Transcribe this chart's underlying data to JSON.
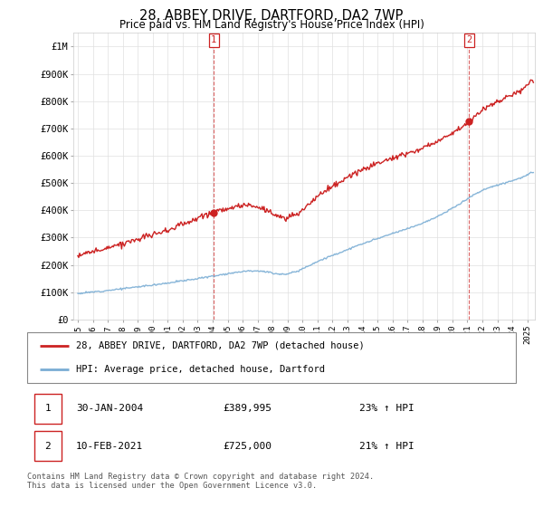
{
  "title": "28, ABBEY DRIVE, DARTFORD, DA2 7WP",
  "subtitle": "Price paid vs. HM Land Registry's House Price Index (HPI)",
  "ylim": [
    0,
    1050000
  ],
  "yticks": [
    0,
    100000,
    200000,
    300000,
    400000,
    500000,
    600000,
    700000,
    800000,
    900000,
    1000000
  ],
  "ytick_labels": [
    "£0",
    "£100K",
    "£200K",
    "£300K",
    "£400K",
    "£500K",
    "£600K",
    "£700K",
    "£800K",
    "£900K",
    "£1M"
  ],
  "xlim_start": 1994.7,
  "xlim_end": 2025.5,
  "hpi_color": "#7aadd4",
  "price_color": "#cc2222",
  "marker1_x": 2004.08,
  "marker1_y": 389995,
  "marker2_x": 2021.12,
  "marker2_y": 725000,
  "legend_label1": "28, ABBEY DRIVE, DARTFORD, DA2 7WP (detached house)",
  "legend_label2": "HPI: Average price, detached house, Dartford",
  "footer": "Contains HM Land Registry data © Crown copyright and database right 2024.\nThis data is licensed under the Open Government Licence v3.0.",
  "background_color": "#ffffff",
  "grid_color": "#e0e0e0"
}
